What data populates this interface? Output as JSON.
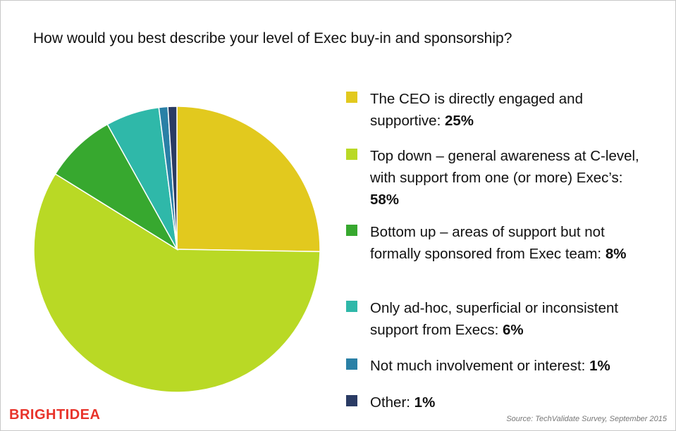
{
  "chart_data": {
    "type": "pie",
    "title": "How would you best describe your level of Exec buy-in and sponsorship?",
    "categories": [
      "The CEO is directly engaged and supportive:",
      "Top down – general awareness at C-level, with support from one (or more) Exec’s:",
      "Bottom up – areas of support but not formally sponsored from Exec team:",
      "Only ad-hoc, superficial or inconsistent support from Execs:",
      "Not much involvement or interest:",
      "Other:"
    ],
    "values": [
      25,
      58,
      8,
      6,
      1,
      1
    ],
    "value_labels": [
      "25%",
      "58%",
      "8%",
      "6%",
      "1%",
      "1%"
    ],
    "colors": [
      "#e2c91e",
      "#b9d925",
      "#37a82f",
      "#2fb8a9",
      "#2a80a6",
      "#2a3b64"
    ],
    "source": "Source: TechValidate Survey, September 2015",
    "logo": "BRIGHTIDEA"
  }
}
